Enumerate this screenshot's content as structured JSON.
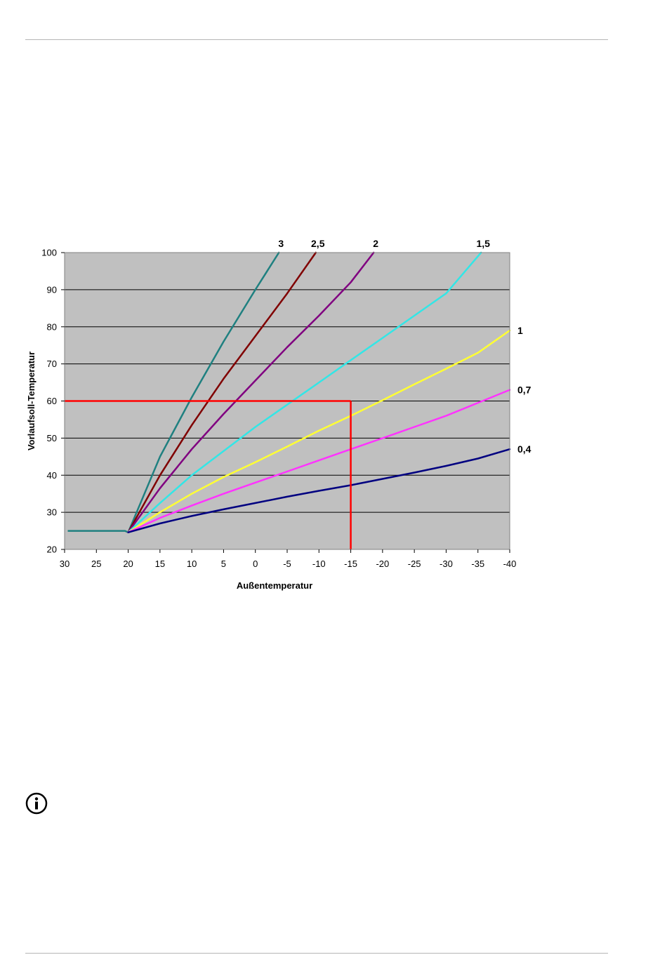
{
  "chart_data": {
    "type": "line",
    "title": "",
    "xlabel": "Außentemperatur",
    "ylabel": "Vorlaufsoll-Temperatur",
    "xlim": [
      30,
      -40
    ],
    "ylim": [
      20,
      100
    ],
    "x_ticks": [
      30,
      25,
      20,
      15,
      10,
      5,
      0,
      -5,
      -10,
      -15,
      -20,
      -25,
      -30,
      -35,
      -40
    ],
    "y_ticks": [
      20,
      30,
      40,
      50,
      60,
      70,
      80,
      90,
      100
    ],
    "grid": "horizontal",
    "background": "#c0c0c0",
    "curve_base": {
      "x": [
        29.5,
        20.5,
        20
      ],
      "y": [
        25,
        25,
        24.6
      ]
    },
    "series": [
      {
        "name": "3",
        "color": "#1f8080",
        "x": [
          20,
          15,
          10,
          5,
          0,
          -3.7
        ],
        "y": [
          24.6,
          45,
          61,
          76,
          90,
          100
        ]
      },
      {
        "name": "2,5",
        "color": "#800000",
        "x": [
          20,
          15,
          10,
          5,
          0,
          -5,
          -9.5
        ],
        "y": [
          24.6,
          40,
          53.5,
          66,
          77.5,
          89,
          100
        ]
      },
      {
        "name": "2",
        "color": "#800080",
        "x": [
          20,
          15,
          10,
          5,
          0,
          -5,
          -10,
          -15,
          -18.6
        ],
        "y": [
          24.6,
          36.5,
          47,
          56.5,
          65.5,
          74.5,
          83,
          92,
          100
        ]
      },
      {
        "name": "1,5",
        "color": "#33e6e6",
        "x": [
          20,
          15,
          10,
          5,
          0,
          -5,
          -10,
          -15,
          -20,
          -25,
          -30,
          -35.5
        ],
        "y": [
          24.6,
          32.5,
          40,
          46.5,
          53,
          59,
          65,
          71,
          77,
          83,
          89,
          100
        ]
      },
      {
        "name": "1",
        "color": "#ffff33",
        "x": [
          20,
          15,
          10,
          5,
          0,
          -5,
          -10,
          -15,
          -20,
          -25,
          -30,
          -35,
          -40
        ],
        "y": [
          24.6,
          30,
          35,
          39.5,
          43.5,
          47.7,
          52,
          56,
          60.2,
          64.5,
          68.7,
          73,
          79
        ]
      },
      {
        "name": "0,7",
        "color": "#ff33ff",
        "x": [
          20,
          15,
          10,
          5,
          0,
          -5,
          -10,
          -15,
          -20,
          -25,
          -30,
          -35,
          -40
        ],
        "y": [
          24.6,
          28.5,
          31.8,
          35,
          38,
          41,
          44,
          47,
          50,
          53,
          56,
          59.5,
          63
        ]
      },
      {
        "name": "0,4",
        "color": "#000080",
        "x": [
          20,
          15,
          10,
          5,
          0,
          -5,
          -10,
          -15,
          -20,
          -25,
          -30,
          -35,
          -40
        ],
        "y": [
          24.6,
          27,
          29,
          30.8,
          32.5,
          34.2,
          35.8,
          37.3,
          39,
          40.7,
          42.5,
          44.5,
          47
        ]
      }
    ],
    "annotation": {
      "color": "#ff0000",
      "x": -15,
      "y": 60
    }
  }
}
